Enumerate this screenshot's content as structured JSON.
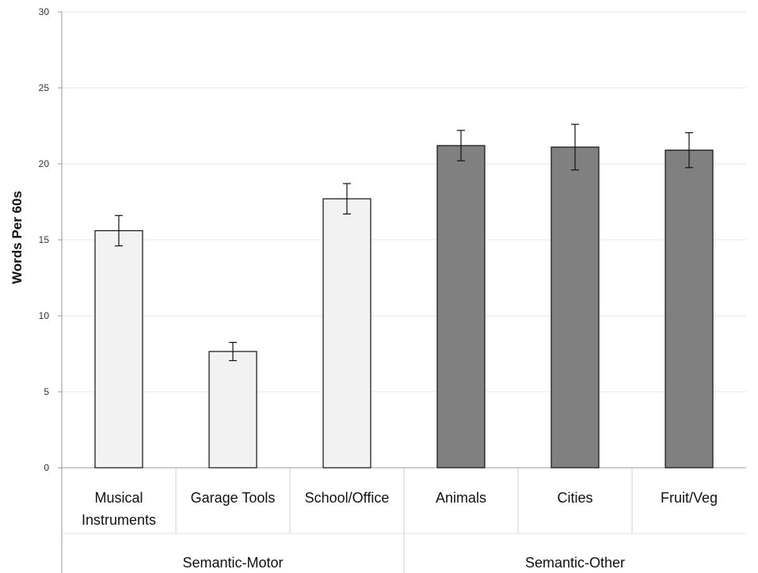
{
  "chart_data": {
    "type": "bar",
    "title": "",
    "xlabel": "",
    "ylabel": "Words Per 60s",
    "ylim": [
      0,
      30
    ],
    "yticks": [
      0,
      5,
      10,
      15,
      20,
      25,
      30
    ],
    "grid": true,
    "categories": [
      [
        "Musical",
        "Instruments"
      ],
      [
        "Garage Tools"
      ],
      [
        "School/Office"
      ],
      [
        "Animals"
      ],
      [
        "Cities"
      ],
      [
        "Fruit/Veg"
      ]
    ],
    "values": [
      15.6,
      7.65,
      17.7,
      21.2,
      21.1,
      20.9
    ],
    "errors": [
      1.0,
      0.6,
      1.0,
      1.0,
      1.5,
      1.15
    ],
    "bar_colors": [
      "#f2f2f2",
      "#f2f2f2",
      "#f2f2f2",
      "#808080",
      "#808080",
      "#808080"
    ],
    "groups": [
      {
        "label": "Semantic-Motor",
        "start": 0,
        "end": 2
      },
      {
        "label": "Semantic-Other",
        "start": 3,
        "end": 5
      }
    ]
  }
}
